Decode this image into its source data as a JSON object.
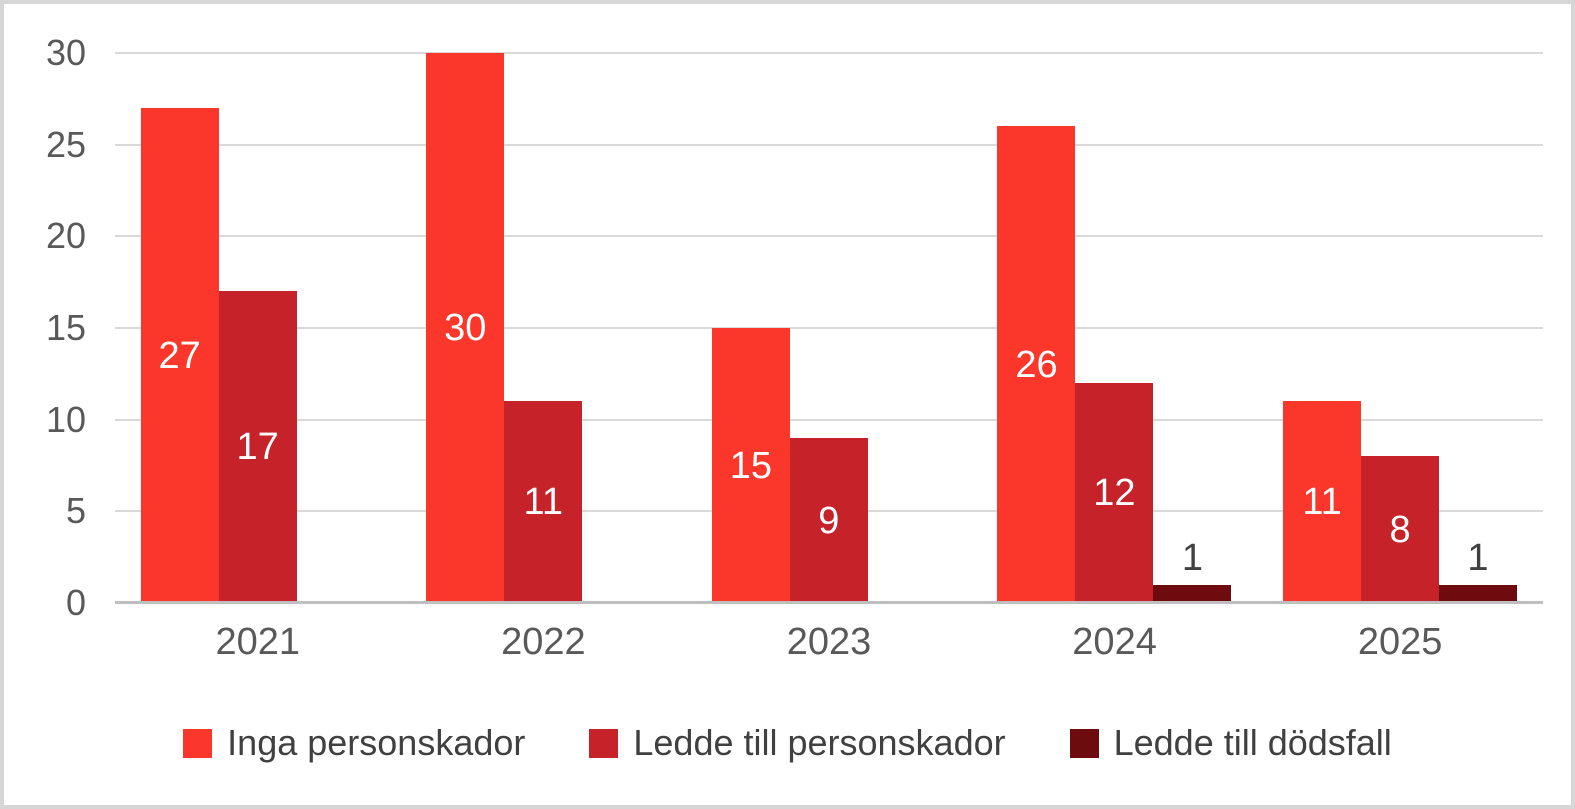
{
  "chart_data": {
    "type": "bar",
    "title": "",
    "xlabel": "",
    "ylabel": "",
    "categories": [
      "2021",
      "2022",
      "2023",
      "2024",
      "2025"
    ],
    "series": [
      {
        "name": "Inga personskador",
        "color": "#fb362b",
        "values": [
          27,
          30,
          15,
          26,
          11
        ]
      },
      {
        "name": "Ledde till personskador",
        "color": "#c5222a",
        "values": [
          17,
          11,
          9,
          12,
          8
        ]
      },
      {
        "name": "Ledde till dödsfall",
        "color": "#6e0b0e",
        "values": [
          0,
          0,
          0,
          1,
          1
        ]
      }
    ],
    "ylim": [
      0,
      30
    ],
    "ytick_step": 5,
    "yticks": [
      "0",
      "5",
      "10",
      "15",
      "20",
      "25",
      "30"
    ],
    "grid": true,
    "legend_position": "bottom",
    "data_labels": "inside-center, outside above bar when bar too short, zero values hidden"
  },
  "colors": {
    "gridline": "#d9d9d9",
    "axis_line": "#bfbfbf",
    "tick_text": "#595959",
    "legend_text": "#404040",
    "outside_label_text": "#404040",
    "inside_label_text": "#ffffff",
    "frame_border": "#d6d6d6",
    "background": "#ffffff"
  }
}
